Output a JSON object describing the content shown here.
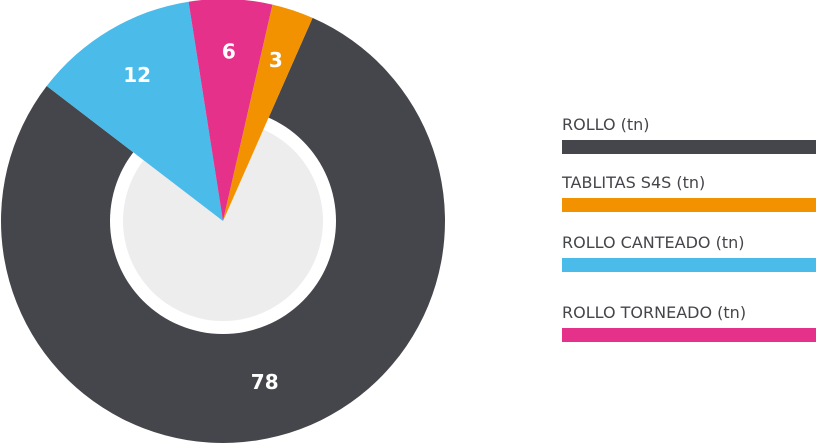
{
  "chart_data": {
    "type": "donut",
    "categories": [
      "ROLLO (tn)",
      "TABLITAS S4S (tn)",
      "ROLLO CANTEADO (tn)",
      "ROLLO TORNEADO (tn)"
    ],
    "values": [
      78,
      3,
      12,
      6
    ],
    "colors": [
      "#45464b",
      "#f39200",
      "#4bbbea",
      "#e5318a"
    ],
    "legend": "right"
  }
}
